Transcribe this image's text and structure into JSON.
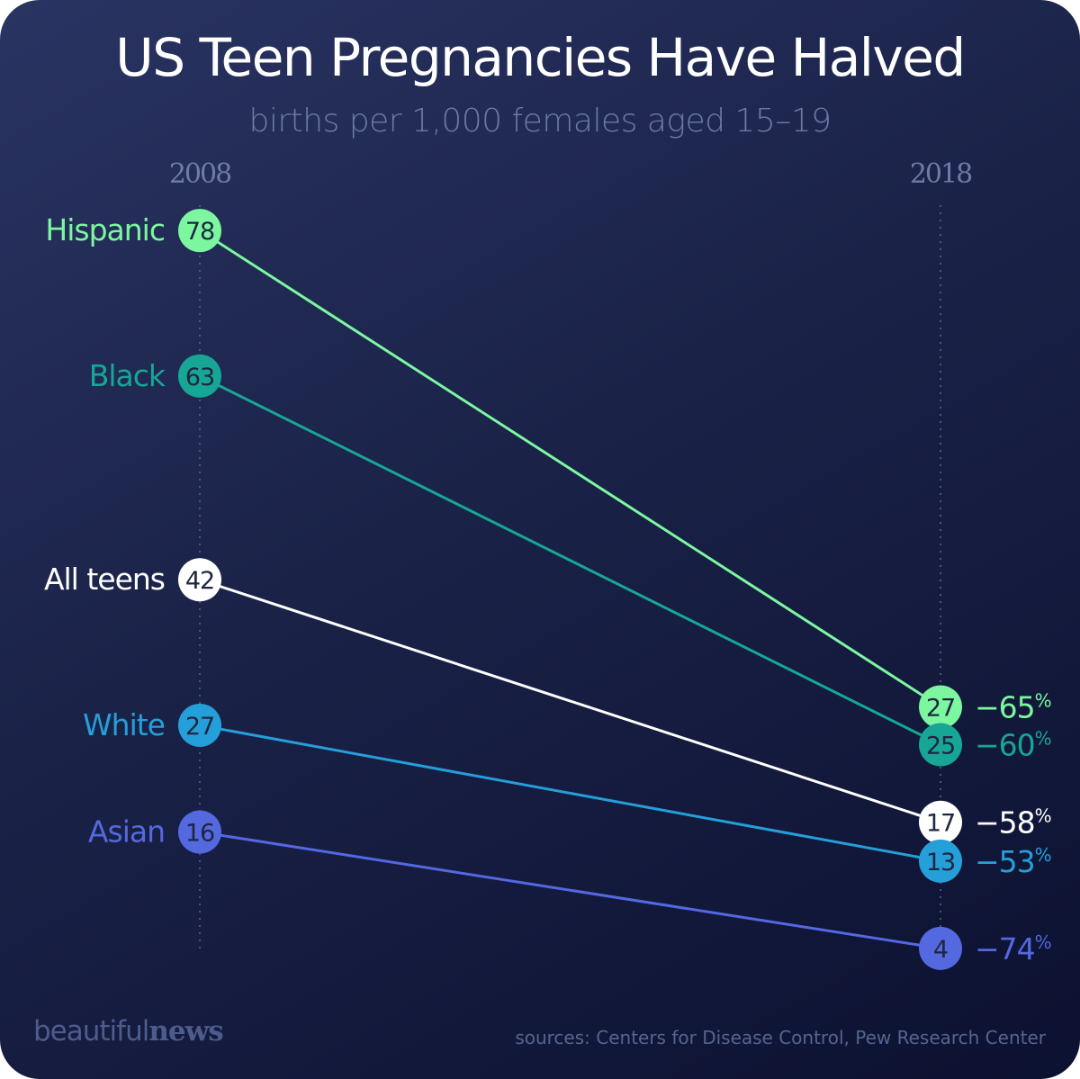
{
  "chart_data": {
    "type": "slope",
    "title": "US Teen Pregnancies Have Halved",
    "subtitle": "births per 1,000 females aged 15–19",
    "x": [
      "2008",
      "2018"
    ],
    "series": [
      {
        "name": "Hispanic",
        "values": [
          78,
          27
        ],
        "change": "−65",
        "color": "#7cf7a0"
      },
      {
        "name": "Black",
        "values": [
          63,
          25
        ],
        "change": "−60",
        "color": "#17a696"
      },
      {
        "name": "All teens",
        "values": [
          42,
          17
        ],
        "change": "−58",
        "color": "#ffffff"
      },
      {
        "name": "White",
        "values": [
          27,
          13
        ],
        "change": "−53",
        "color": "#259fd9"
      },
      {
        "name": "Asian",
        "values": [
          16,
          4
        ],
        "change": "−74",
        "color": "#5468e0"
      }
    ],
    "percent_sign": "%",
    "grid": false
  },
  "footer": {
    "logo_light": "beautiful",
    "logo_bold": "news",
    "sources": "sources: Centers for Disease Control, Pew Research Center"
  }
}
